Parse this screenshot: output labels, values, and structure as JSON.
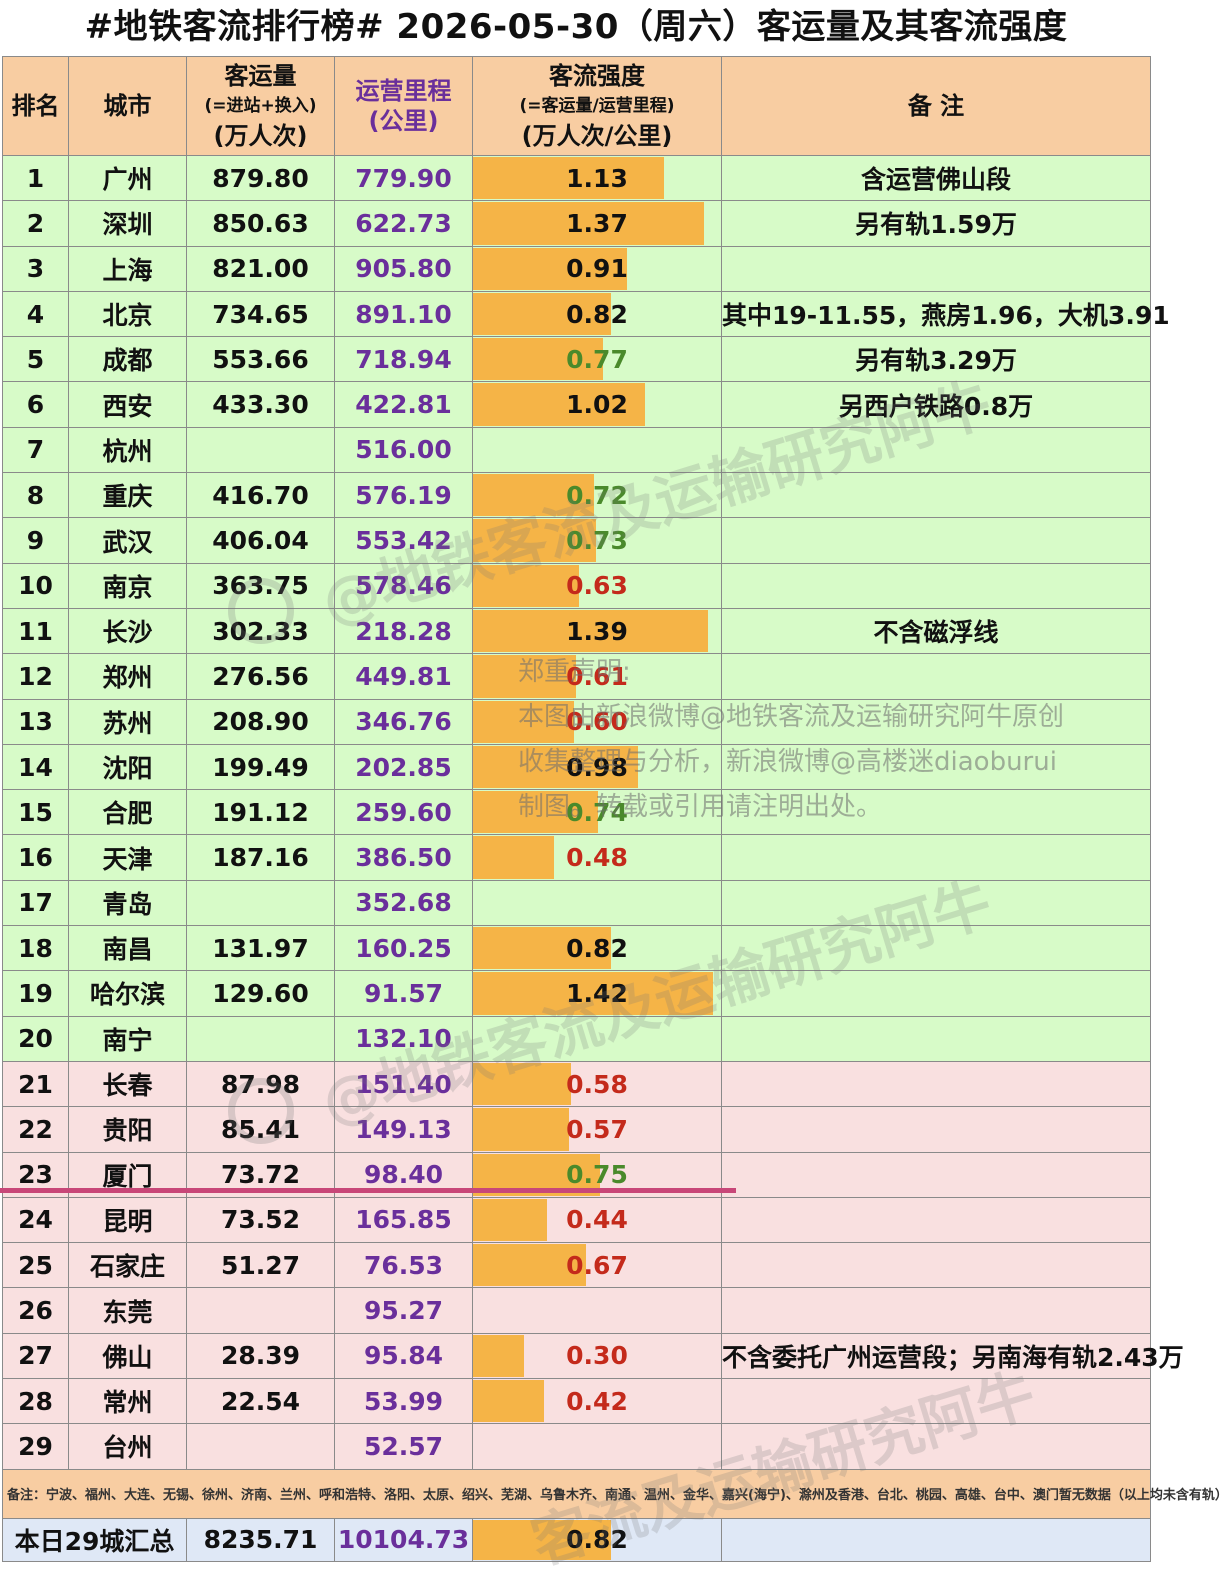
{
  "title": "#地铁客流排行榜# 2026-05-30（周六）客运量及其客流强度",
  "headers": {
    "rank": "排名",
    "city": "城市",
    "volume_line1": "客运量",
    "volume_line2": "(=进站+换入)",
    "volume_line3": "(万人次)",
    "mileage_line1": "运营里程",
    "mileage_line2": "(公里)",
    "intensity_line1": "客流强度",
    "intensity_line2": "(=客运量/运营里程)",
    "intensity_line3": "(万人次/公里)",
    "note": "备 注"
  },
  "colors": {
    "header_bg": "#f8cda2",
    "row_green": "#d7fbc8",
    "row_pink": "#f9e0e0",
    "bar": "#f5b447",
    "mileage_text": "#6a2f9b",
    "intensity_red": "#c42a1b",
    "intensity_green": "#4a8a2b",
    "divider_line": "#c84778",
    "total_bg": "#dfe8f6"
  },
  "rows": [
    {
      "rank": "1",
      "city": "广州",
      "volume": "879.80",
      "mileage": "779.90",
      "intensity": "1.13",
      "color": "black",
      "note": "含运营佛山段",
      "group": "g"
    },
    {
      "rank": "2",
      "city": "深圳",
      "volume": "850.63",
      "mileage": "622.73",
      "intensity": "1.37",
      "color": "black",
      "note": "另有轨1.59万",
      "group": "g"
    },
    {
      "rank": "3",
      "city": "上海",
      "volume": "821.00",
      "mileage": "905.80",
      "intensity": "0.91",
      "color": "black",
      "note": "",
      "group": "g"
    },
    {
      "rank": "4",
      "city": "北京",
      "volume": "734.65",
      "mileage": "891.10",
      "intensity": "0.82",
      "color": "black",
      "note": "其中19-11.55，燕房1.96，大机3.91",
      "group": "g"
    },
    {
      "rank": "5",
      "city": "成都",
      "volume": "553.66",
      "mileage": "718.94",
      "intensity": "0.77",
      "color": "green",
      "note": "另有轨3.29万",
      "group": "g"
    },
    {
      "rank": "6",
      "city": "西安",
      "volume": "433.30",
      "mileage": "422.81",
      "intensity": "1.02",
      "color": "black",
      "note": "另西户铁路0.8万",
      "group": "g"
    },
    {
      "rank": "7",
      "city": "杭州",
      "volume": "",
      "mileage": "516.00",
      "intensity": "",
      "color": "black",
      "note": "",
      "group": "g"
    },
    {
      "rank": "8",
      "city": "重庆",
      "volume": "416.70",
      "mileage": "576.19",
      "intensity": "0.72",
      "color": "green",
      "note": "",
      "group": "g"
    },
    {
      "rank": "9",
      "city": "武汉",
      "volume": "406.04",
      "mileage": "553.42",
      "intensity": "0.73",
      "color": "green",
      "note": "",
      "group": "g"
    },
    {
      "rank": "10",
      "city": "南京",
      "volume": "363.75",
      "mileage": "578.46",
      "intensity": "0.63",
      "color": "red",
      "note": "",
      "group": "g"
    },
    {
      "rank": "11",
      "city": "长沙",
      "volume": "302.33",
      "mileage": "218.28",
      "intensity": "1.39",
      "color": "black",
      "note": "不含磁浮线",
      "group": "g"
    },
    {
      "rank": "12",
      "city": "郑州",
      "volume": "276.56",
      "mileage": "449.81",
      "intensity": "0.61",
      "color": "red",
      "note": "",
      "group": "g"
    },
    {
      "rank": "13",
      "city": "苏州",
      "volume": "208.90",
      "mileage": "346.76",
      "intensity": "0.60",
      "color": "red",
      "note": "",
      "group": "g"
    },
    {
      "rank": "14",
      "city": "沈阳",
      "volume": "199.49",
      "mileage": "202.85",
      "intensity": "0.98",
      "color": "black",
      "note": "",
      "group": "g"
    },
    {
      "rank": "15",
      "city": "合肥",
      "volume": "191.12",
      "mileage": "259.60",
      "intensity": "0.74",
      "color": "green",
      "note": "",
      "group": "g"
    },
    {
      "rank": "16",
      "city": "天津",
      "volume": "187.16",
      "mileage": "386.50",
      "intensity": "0.48",
      "color": "red",
      "note": "",
      "group": "g"
    },
    {
      "rank": "17",
      "city": "青岛",
      "volume": "",
      "mileage": "352.68",
      "intensity": "",
      "color": "black",
      "note": "",
      "group": "g"
    },
    {
      "rank": "18",
      "city": "南昌",
      "volume": "131.97",
      "mileage": "160.25",
      "intensity": "0.82",
      "color": "black",
      "note": "",
      "group": "g"
    },
    {
      "rank": "19",
      "city": "哈尔滨",
      "volume": "129.60",
      "mileage": "91.57",
      "intensity": "1.42",
      "color": "black",
      "note": "",
      "group": "g"
    },
    {
      "rank": "20",
      "city": "南宁",
      "volume": "",
      "mileage": "132.10",
      "intensity": "",
      "color": "black",
      "note": "",
      "group": "g"
    },
    {
      "rank": "21",
      "city": "长春",
      "volume": "87.98",
      "mileage": "151.40",
      "intensity": "0.58",
      "color": "red",
      "note": "",
      "group": "p"
    },
    {
      "rank": "22",
      "city": "贵阳",
      "volume": "85.41",
      "mileage": "149.13",
      "intensity": "0.57",
      "color": "red",
      "note": "",
      "group": "p"
    },
    {
      "rank": "23",
      "city": "厦门",
      "volume": "73.72",
      "mileage": "98.40",
      "intensity": "0.75",
      "color": "green",
      "note": "",
      "group": "p"
    },
    {
      "rank": "24",
      "city": "昆明",
      "volume": "73.52",
      "mileage": "165.85",
      "intensity": "0.44",
      "color": "red",
      "note": "",
      "group": "p"
    },
    {
      "rank": "25",
      "city": "石家庄",
      "volume": "51.27",
      "mileage": "76.53",
      "intensity": "0.67",
      "color": "red",
      "note": "",
      "group": "p"
    },
    {
      "rank": "26",
      "city": "东莞",
      "volume": "",
      "mileage": "95.27",
      "intensity": "",
      "color": "black",
      "note": "",
      "group": "p"
    },
    {
      "rank": "27",
      "city": "佛山",
      "volume": "28.39",
      "mileage": "95.84",
      "intensity": "0.30",
      "color": "red",
      "note": "不含委托广州运营段；另南海有轨2.43万",
      "group": "p"
    },
    {
      "rank": "28",
      "city": "常州",
      "volume": "22.54",
      "mileage": "53.99",
      "intensity": "0.42",
      "color": "red",
      "note": "",
      "group": "p"
    },
    {
      "rank": "29",
      "city": "台州",
      "volume": "",
      "mileage": "52.57",
      "intensity": "",
      "color": "black",
      "note": "",
      "group": "p"
    }
  ],
  "footnote": "备注：宁波、福州、大连、无锡、徐州、济南、兰州、呼和浩特、洛阳、太原、绍兴、芜湖、乌鲁木齐、南通、温州、金华、嘉兴(海宁)、滁州及香港、台北、桃园、高雄、台中、澳门暂无数据（以上均未含有轨）",
  "total": {
    "label": "本日29城汇总",
    "volume": "8235.71",
    "mileage": "10104.73",
    "intensity": "0.82"
  },
  "watermark": {
    "line1": "@地铁客流及运输研究阿牛",
    "line2": "@地铁客流及运输研究阿牛",
    "line3": "客流及运输研究阿牛"
  },
  "statement": {
    "line1": "郑重声明:",
    "line2": "本图由新浪微博@地铁客流及运输研究阿牛原创",
    "line3": "收集整理与分析，新浪微博@高楼迷diaoburui",
    "line4": "制图。转载或引用请注明出处。"
  }
}
